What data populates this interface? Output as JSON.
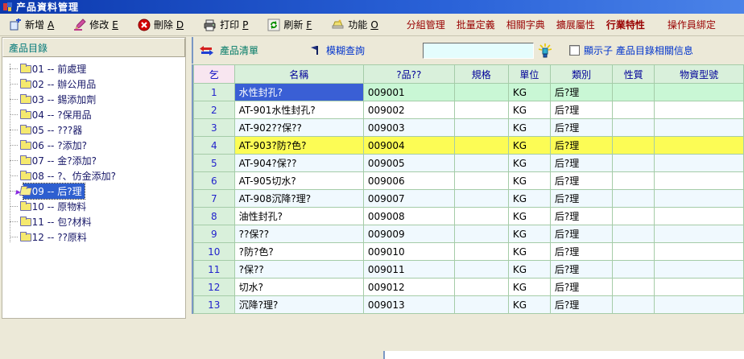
{
  "window": {
    "title": "产品資料管理"
  },
  "toolbar": {
    "buttons": [
      {
        "label": "新增",
        "shortcut": "A",
        "icon": "add-icon"
      },
      {
        "label": "修改",
        "shortcut": "E",
        "icon": "edit-icon"
      },
      {
        "label": "刪除",
        "shortcut": "D",
        "icon": "delete-icon"
      },
      {
        "label": "打印",
        "shortcut": "P",
        "icon": "print-icon"
      },
      {
        "label": "刷新",
        "shortcut": "F",
        "icon": "refresh-icon"
      },
      {
        "label": "功能",
        "shortcut": "O",
        "icon": "function-icon"
      }
    ],
    "menu_links": [
      {
        "label": "分組管理",
        "bold": false
      },
      {
        "label": "批量定義",
        "bold": false
      },
      {
        "label": "相關字典",
        "bold": false
      },
      {
        "label": "擴展屬性",
        "bold": false
      },
      {
        "label": "行業特性",
        "bold": true
      },
      {
        "label": "操作員綁定",
        "bold": false,
        "gap": true
      }
    ]
  },
  "tree": {
    "header": "產品目錄",
    "items": [
      {
        "label": "001 -- 前處理",
        "selected": false
      },
      {
        "label": "002 -- 辦公用品",
        "selected": false
      },
      {
        "label": "003 -- 錫添加劑",
        "selected": false
      },
      {
        "label": "004 -- ?保用品",
        "selected": false
      },
      {
        "label": "005 -- ???器",
        "selected": false
      },
      {
        "label": "006 -- ?添加?",
        "selected": false
      },
      {
        "label": "007 -- 金?添加?",
        "selected": false
      },
      {
        "label": "008 -- ?、仿金添加?",
        "selected": false
      },
      {
        "label": "009 -- 后?理",
        "selected": true
      },
      {
        "label": "010 -- 原物料",
        "selected": false
      },
      {
        "label": "011 -- 包?材料",
        "selected": false
      },
      {
        "label": "012 -- ??原料",
        "selected": false
      }
    ]
  },
  "listbar": {
    "title": "產品清單",
    "query_label": "模糊查詢",
    "query_value": "",
    "query_placeholder": "",
    "checkbox_label": "顯示子 產品目錄相關信息",
    "checkbox_checked": false
  },
  "table": {
    "headers": [
      "乞",
      "名稱",
      "?品??",
      "規格",
      "單位",
      "類別",
      "性質",
      "物資型號"
    ],
    "rows": [
      {
        "num": "1",
        "name": "水性封孔?",
        "code": "009001",
        "spec": "",
        "unit": "KG",
        "category": "后?理",
        "nature": "",
        "model": "",
        "state": "current",
        "name_selected": true
      },
      {
        "num": "2",
        "name": "AT-901水性封孔?",
        "code": "009002",
        "spec": "",
        "unit": "KG",
        "category": "后?理",
        "nature": "",
        "model": "",
        "state": "",
        "name_selected": false
      },
      {
        "num": "3",
        "name": "AT-902??保??",
        "code": "009003",
        "spec": "",
        "unit": "KG",
        "category": "后?理",
        "nature": "",
        "model": "",
        "state": "",
        "name_selected": false
      },
      {
        "num": "4",
        "name": "AT-903?防?色?",
        "code": "009004",
        "spec": "",
        "unit": "KG",
        "category": "后?理",
        "nature": "",
        "model": "",
        "state": "marked",
        "name_selected": false
      },
      {
        "num": "5",
        "name": "AT-904?保??",
        "code": "009005",
        "spec": "",
        "unit": "KG",
        "category": "后?理",
        "nature": "",
        "model": "",
        "state": "",
        "name_selected": false
      },
      {
        "num": "6",
        "name": "AT-905切水?",
        "code": "009006",
        "spec": "",
        "unit": "KG",
        "category": "后?理",
        "nature": "",
        "model": "",
        "state": "",
        "name_selected": false
      },
      {
        "num": "7",
        "name": "AT-908沉降?理?",
        "code": "009007",
        "spec": "",
        "unit": "KG",
        "category": "后?理",
        "nature": "",
        "model": "",
        "state": "",
        "name_selected": false
      },
      {
        "num": "8",
        "name": "油性封孔?",
        "code": "009008",
        "spec": "",
        "unit": "KG",
        "category": "后?理",
        "nature": "",
        "model": "",
        "state": "",
        "name_selected": false
      },
      {
        "num": "9",
        "name": "??保??",
        "code": "009009",
        "spec": "",
        "unit": "KG",
        "category": "后?理",
        "nature": "",
        "model": "",
        "state": "",
        "name_selected": false
      },
      {
        "num": "10",
        "name": "?防?色?",
        "code": "009010",
        "spec": "",
        "unit": "KG",
        "category": "后?理",
        "nature": "",
        "model": "",
        "state": "",
        "name_selected": false
      },
      {
        "num": "11",
        "name": "?保??",
        "code": "009011",
        "spec": "",
        "unit": "KG",
        "category": "后?理",
        "nature": "",
        "model": "",
        "state": "",
        "name_selected": false
      },
      {
        "num": "12",
        "name": "切水?",
        "code": "009012",
        "spec": "",
        "unit": "KG",
        "category": "后?理",
        "nature": "",
        "model": "",
        "state": "",
        "name_selected": false
      },
      {
        "num": "13",
        "name": "沉降?理?",
        "code": "009013",
        "spec": "",
        "unit": "KG",
        "category": "后?理",
        "nature": "",
        "model": "",
        "state": "",
        "name_selected": false
      }
    ]
  },
  "colors": {
    "selection_blue": "#3A5FD5",
    "current_row_mint": "#C9F7D5",
    "marked_row_yellow": "#FCFC55",
    "grid_header_green": "#D9F0DB",
    "menu_red": "#990000",
    "titlebar_blue": "#2a62d8"
  }
}
